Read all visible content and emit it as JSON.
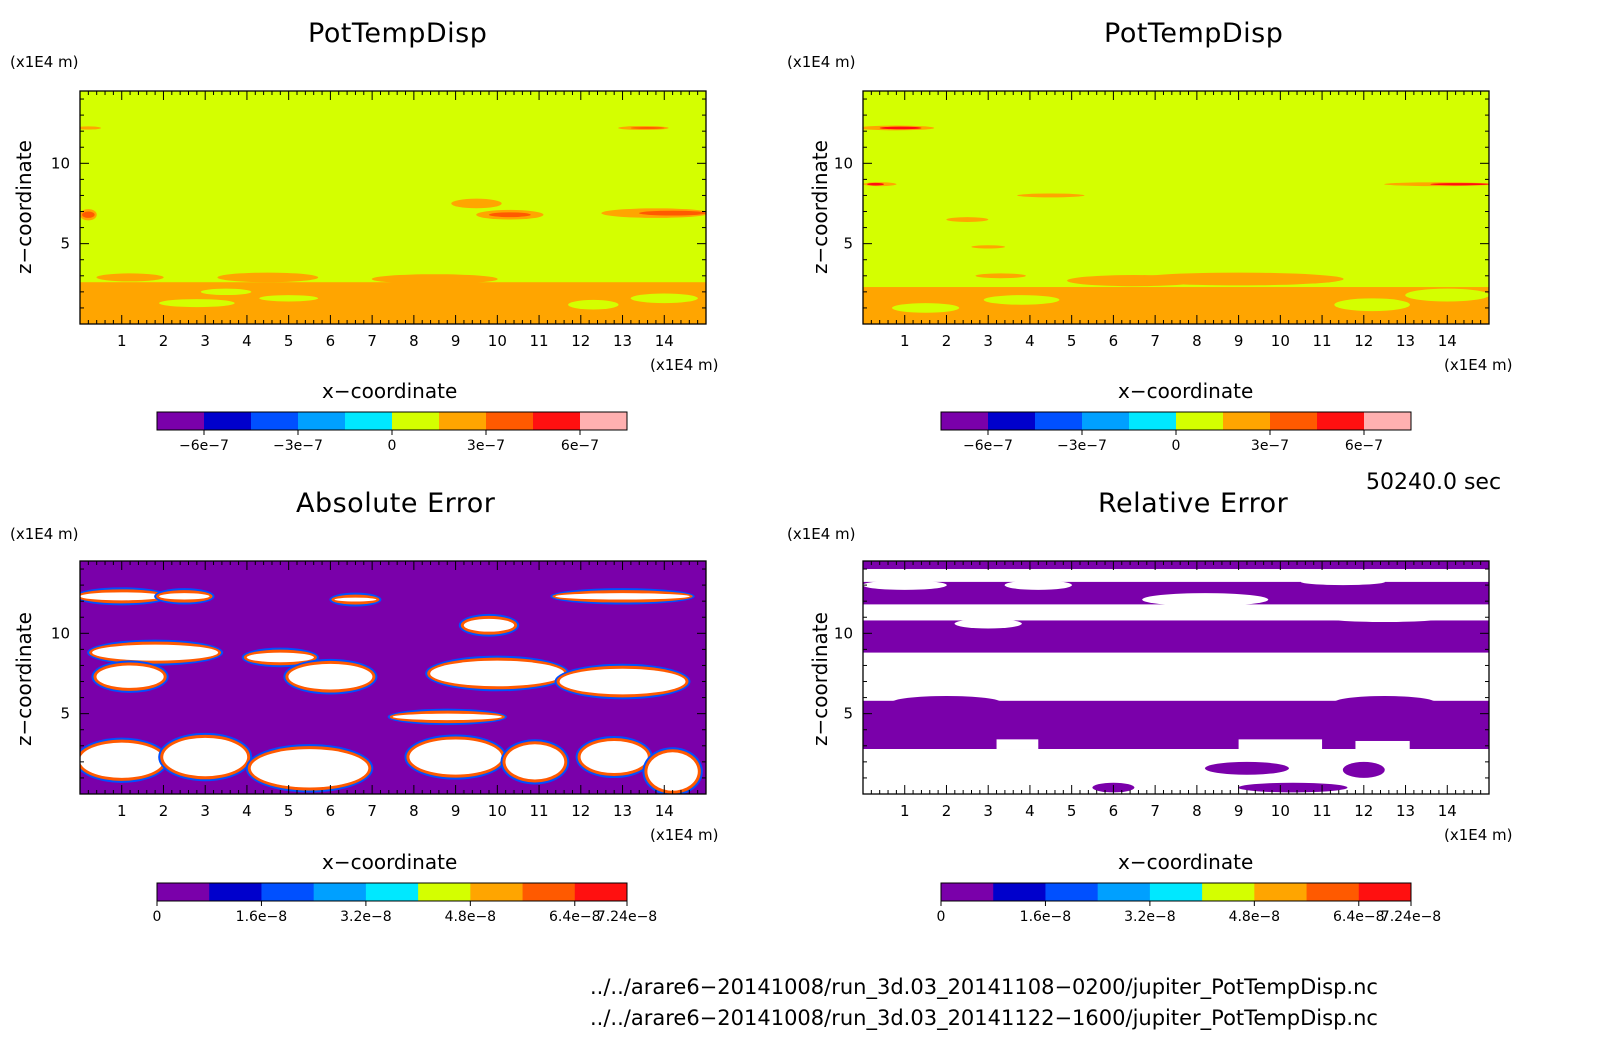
{
  "panels": [
    {
      "id": "p1",
      "title": "PotTempDisp",
      "zunit": "(x1E4 m)",
      "xunit": "(x1E4 m)",
      "xlabel": "x−coordinate",
      "ylabel": "z−coordinate",
      "bg": "#d4ff00",
      "colorbar": {
        "colors": [
          "#7a00aa",
          "#0000cc",
          "#0050ff",
          "#00a0ff",
          "#00e8ff",
          "#d4ff00",
          "#ffa500",
          "#ff5a00",
          "#ff1010",
          "#ffb0b0"
        ],
        "ticks": [
          "−6e−7",
          "−3e−7",
          "0",
          "3e−7",
          "6e−7"
        ]
      }
    },
    {
      "id": "p2",
      "title": "PotTempDisp",
      "zunit": "(x1E4 m)",
      "xunit": "(x1E4 m)",
      "xlabel": "x−coordinate",
      "ylabel": "z−coordinate",
      "bg": "#d4ff00",
      "colorbar": {
        "colors": [
          "#7a00aa",
          "#0000cc",
          "#0050ff",
          "#00a0ff",
          "#00e8ff",
          "#d4ff00",
          "#ffa500",
          "#ff5a00",
          "#ff1010",
          "#ffb0b0"
        ],
        "ticks": [
          "−6e−7",
          "−3e−7",
          "0",
          "3e−7",
          "6e−7"
        ]
      }
    },
    {
      "id": "p3",
      "title": "Absolute Error",
      "zunit": "(x1E4 m)",
      "xunit": "(x1E4 m)",
      "xlabel": "x−coordinate",
      "ylabel": "z−coordinate",
      "bg": "#7a00aa",
      "colorbar": {
        "colors": [
          "#7a00aa",
          "#0000cc",
          "#0050ff",
          "#00a0ff",
          "#00e8ff",
          "#d4ff00",
          "#ffa500",
          "#ff5a00",
          "#ff1010"
        ],
        "ticks": [
          "0",
          "1.6e−8",
          "3.2e−8",
          "4.8e−8",
          "6.4e−8",
          "7.24e−8"
        ]
      }
    },
    {
      "id": "p4",
      "title": "Relative Error",
      "zunit": "(x1E4 m)",
      "xunit": "(x1E4 m)",
      "xlabel": "x−coordinate",
      "ylabel": "z−coordinate",
      "bg": "#7a00aa",
      "colorbar": {
        "colors": [
          "#7a00aa",
          "#0000cc",
          "#0050ff",
          "#00a0ff",
          "#00e8ff",
          "#d4ff00",
          "#ffa500",
          "#ff5a00",
          "#ff1010"
        ],
        "ticks": [
          "0",
          "1.6e−8",
          "3.2e−8",
          "4.8e−8",
          "6.4e−8",
          "7.24e−8"
        ]
      }
    }
  ],
  "time_label": "50240.0 sec",
  "footer_lines": [
    "../../arare6−20141008/run_3d.03_20141108−0200/jupiter_PotTempDisp.nc",
    "../../arare6−20141008/run_3d.03_20141122−1600/jupiter_PotTempDisp.nc"
  ],
  "chart_data": [
    {
      "type": "heatmap",
      "title": "PotTempDisp",
      "xlabel": "x−coordinate",
      "ylabel": "z−coordinate",
      "x_ticks": [
        1,
        2,
        3,
        4,
        5,
        6,
        7,
        8,
        9,
        10,
        11,
        12,
        13,
        14
      ],
      "y_ticks": [
        5,
        10
      ],
      "xlim": [
        0,
        15
      ],
      "ylim": [
        0,
        14.5
      ],
      "colorbar_levels": [
        "−6e−7",
        "−3e−7",
        "0",
        "3e−7",
        "6e−7"
      ],
      "dominant_value": 0
    },
    {
      "type": "heatmap",
      "title": "PotTempDisp",
      "xlabel": "x−coordinate",
      "ylabel": "z−coordinate",
      "x_ticks": [
        1,
        2,
        3,
        4,
        5,
        6,
        7,
        8,
        9,
        10,
        11,
        12,
        13,
        14
      ],
      "y_ticks": [
        5,
        10
      ],
      "xlim": [
        0,
        15
      ],
      "ylim": [
        0,
        14.5
      ],
      "colorbar_levels": [
        "−6e−7",
        "−3e−7",
        "0",
        "3e−7",
        "6e−7"
      ],
      "dominant_value": 0
    },
    {
      "type": "heatmap",
      "title": "Absolute Error",
      "xlabel": "x−coordinate",
      "ylabel": "z−coordinate",
      "x_ticks": [
        1,
        2,
        3,
        4,
        5,
        6,
        7,
        8,
        9,
        10,
        11,
        12,
        13,
        14
      ],
      "y_ticks": [
        5,
        10
      ],
      "xlim": [
        0,
        15
      ],
      "ylim": [
        0,
        14.5
      ],
      "colorbar_levels": [
        "0",
        "1.6e−8",
        "3.2e−8",
        "4.8e−8",
        "6.4e−8",
        "7.24e−8"
      ],
      "dominant_value": 0
    },
    {
      "type": "heatmap",
      "title": "Relative Error",
      "xlabel": "x−coordinate",
      "ylabel": "z−coordinate",
      "x_ticks": [
        1,
        2,
        3,
        4,
        5,
        6,
        7,
        8,
        9,
        10,
        11,
        12,
        13,
        14
      ],
      "y_ticks": [
        5,
        10
      ],
      "xlim": [
        0,
        15
      ],
      "ylim": [
        0,
        14.5
      ],
      "colorbar_levels": [
        "0",
        "1.6e−8",
        "3.2e−8",
        "4.8e−8",
        "6.4e−8",
        "7.24e−8"
      ],
      "dominant_value": 0
    }
  ]
}
